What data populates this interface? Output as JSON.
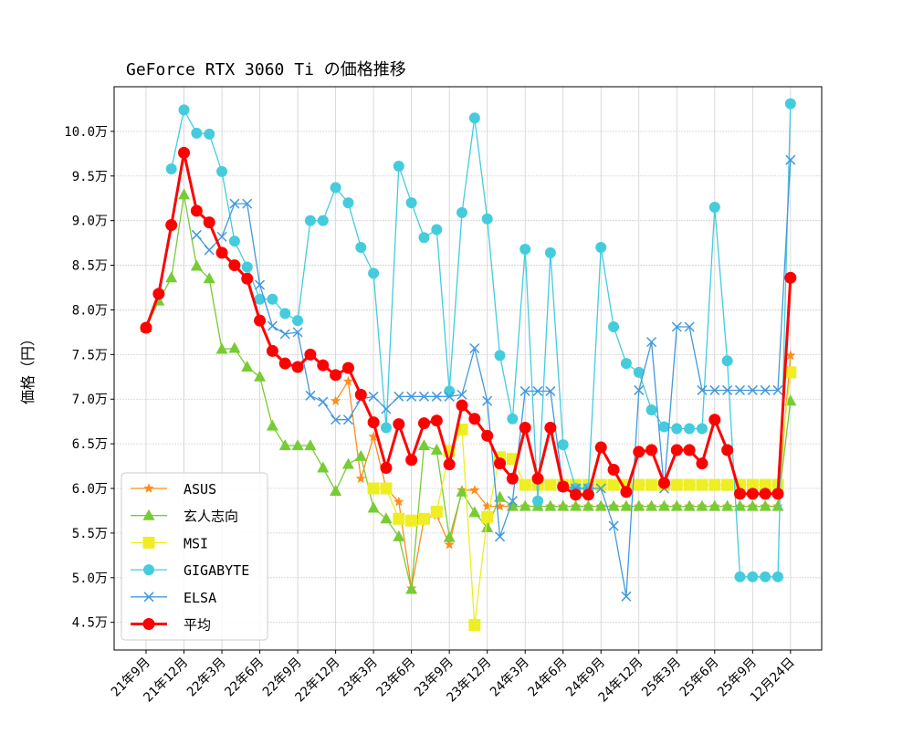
{
  "chart_data": {
    "type": "line",
    "title": "GeForce RTX 3060 Ti の価格推移",
    "xlabel": "",
    "ylabel": "価格（円）",
    "ylim": [
      4.19,
      10.5
    ],
    "grid": true,
    "legend_position": "lower-left",
    "y_ticks": [
      4.5,
      5.0,
      5.5,
      6.0,
      6.5,
      7.0,
      7.5,
      8.0,
      8.5,
      9.0,
      9.5,
      10.0
    ],
    "y_tick_labels": [
      "4.5万",
      "5.0万",
      "5.5万",
      "6.0万",
      "6.5万",
      "7.0万",
      "7.5万",
      "8.0万",
      "8.5万",
      "9.0万",
      "9.5万",
      "10.0万"
    ],
    "categories": [
      "21年9月",
      "21年10月",
      "21年11月",
      "21年12月",
      "22年1月",
      "22年2月",
      "22年3月",
      "22年4月",
      "22年5月",
      "22年6月",
      "22年7月",
      "22年8月",
      "22年9月",
      "22年10月",
      "22年11月",
      "22年12月",
      "23年1月",
      "23年2月",
      "23年3月",
      "23年4月",
      "23年5月",
      "23年6月",
      "23年7月",
      "23年8月",
      "23年9月",
      "23年10月",
      "23年11月",
      "23年12月",
      "24年1月",
      "24年2月",
      "24年3月",
      "24年4月",
      "24年5月",
      "24年6月",
      "24年7月",
      "24年8月",
      "24年9月",
      "24年10月",
      "24年11月",
      "24年12月",
      "25年1月",
      "25年2月",
      "25年3月",
      "25年4月",
      "25年5月",
      "25年6月",
      "25年7月",
      "25年8月",
      "25年9月",
      "25年10月",
      "25年11月",
      "12月24日"
    ],
    "x_tick_labels": [
      "21年9月",
      "21年12月",
      "22年3月",
      "22年6月",
      "22年9月",
      "22年12月",
      "23年3月",
      "23年6月",
      "23年9月",
      "23年12月",
      "24年3月",
      "24年6月",
      "24年9月",
      "24年12月",
      "25年3月",
      "25年6月",
      "25年9月",
      "12月24日"
    ],
    "series": [
      {
        "name": "ASUS",
        "color": "#ff8c1e",
        "marker": "star",
        "values": [
          7.8,
          null,
          null,
          null,
          null,
          null,
          null,
          null,
          null,
          null,
          null,
          null,
          null,
          null,
          null,
          6.98,
          7.2,
          6.11,
          6.58,
          6.0,
          5.85,
          4.88,
          5.66,
          5.7,
          5.37,
          5.98,
          5.98,
          5.8,
          5.8,
          5.8,
          5.8,
          5.8,
          5.8,
          5.8,
          5.8,
          5.8,
          5.8,
          5.8,
          5.8,
          5.8,
          5.8,
          5.8,
          5.8,
          5.8,
          5.8,
          5.8,
          5.8,
          5.8,
          5.8,
          5.8,
          5.8,
          7.49
        ]
      },
      {
        "name": "玄人志向",
        "color": "#77cc33",
        "marker": "triangle",
        "values": [
          7.8,
          8.1,
          8.36,
          9.29,
          8.49,
          8.35,
          7.56,
          7.57,
          7.36,
          7.25,
          6.7,
          6.48,
          6.48,
          6.48,
          6.23,
          5.97,
          6.27,
          6.36,
          5.78,
          5.66,
          5.46,
          4.87,
          6.48,
          6.43,
          5.45,
          5.96,
          5.73,
          5.56,
          5.9,
          5.8,
          5.8,
          5.8,
          5.8,
          5.8,
          5.8,
          5.8,
          5.8,
          5.8,
          5.8,
          5.8,
          5.8,
          5.8,
          5.8,
          5.8,
          5.8,
          5.8,
          5.8,
          5.8,
          5.8,
          5.8,
          5.8,
          6.98
        ]
      },
      {
        "name": "MSI",
        "color": "#eeee22",
        "marker": "square",
        "values": [
          null,
          null,
          null,
          null,
          null,
          null,
          null,
          null,
          null,
          null,
          null,
          null,
          null,
          null,
          null,
          null,
          null,
          null,
          6.0,
          6.0,
          5.66,
          5.64,
          5.66,
          5.74,
          6.42,
          6.66,
          4.47,
          5.68,
          6.35,
          6.33,
          6.04,
          6.04,
          6.04,
          6.04,
          6.04,
          6.04,
          6.04,
          6.04,
          6.04,
          6.04,
          6.04,
          6.04,
          6.04,
          6.04,
          6.04,
          6.04,
          6.04,
          6.04,
          6.04,
          6.04,
          6.04,
          7.3
        ]
      },
      {
        "name": "GIGABYTE",
        "color": "#44ccdd",
        "marker": "circle",
        "values": [
          null,
          null,
          9.58,
          10.24,
          9.98,
          9.97,
          9.55,
          8.77,
          8.48,
          8.12,
          8.12,
          7.96,
          7.88,
          9.0,
          9.0,
          9.37,
          9.2,
          8.7,
          8.41,
          6.68,
          9.61,
          9.2,
          8.81,
          8.9,
          7.09,
          9.09,
          10.15,
          9.02,
          7.49,
          6.78,
          8.68,
          5.86,
          8.64,
          6.49,
          6.0,
          6.0,
          8.7,
          7.81,
          7.4,
          7.3,
          6.88,
          6.69,
          6.67,
          6.67,
          6.67,
          9.15,
          7.43,
          5.01,
          5.01,
          5.01,
          5.01,
          10.31
        ]
      },
      {
        "name": "ELSA",
        "color": "#4499dd",
        "marker": "x",
        "values": [
          null,
          null,
          null,
          null,
          8.84,
          8.67,
          8.82,
          9.19,
          9.19,
          8.28,
          7.82,
          7.73,
          7.75,
          7.04,
          6.97,
          6.77,
          6.77,
          7.0,
          7.03,
          6.89,
          7.03,
          7.03,
          7.03,
          7.03,
          7.03,
          7.05,
          7.57,
          6.98,
          5.46,
          5.86,
          7.09,
          7.09,
          7.09,
          6.02,
          6.0,
          6.0,
          6.0,
          5.58,
          4.79,
          7.1,
          7.64,
          6.0,
          7.81,
          7.81,
          7.1,
          7.1,
          7.1,
          7.1,
          7.1,
          7.1,
          7.1,
          9.68
        ]
      },
      {
        "name": "平均",
        "color": "#ff0000",
        "marker": "circle-bold",
        "values": [
          7.8,
          8.18,
          8.95,
          9.76,
          9.11,
          8.98,
          8.64,
          8.5,
          8.35,
          7.88,
          7.54,
          7.4,
          7.36,
          7.5,
          7.38,
          7.27,
          7.35,
          7.05,
          6.74,
          6.23,
          6.72,
          6.32,
          6.73,
          6.76,
          6.27,
          6.93,
          6.78,
          6.59,
          6.28,
          6.11,
          6.68,
          6.11,
          6.68,
          6.02,
          5.93,
          5.93,
          6.46,
          6.21,
          5.96,
          6.41,
          6.43,
          6.06,
          6.43,
          6.43,
          6.28,
          6.77,
          6.43,
          5.94,
          5.94,
          5.94,
          5.94,
          8.36
        ]
      }
    ]
  }
}
